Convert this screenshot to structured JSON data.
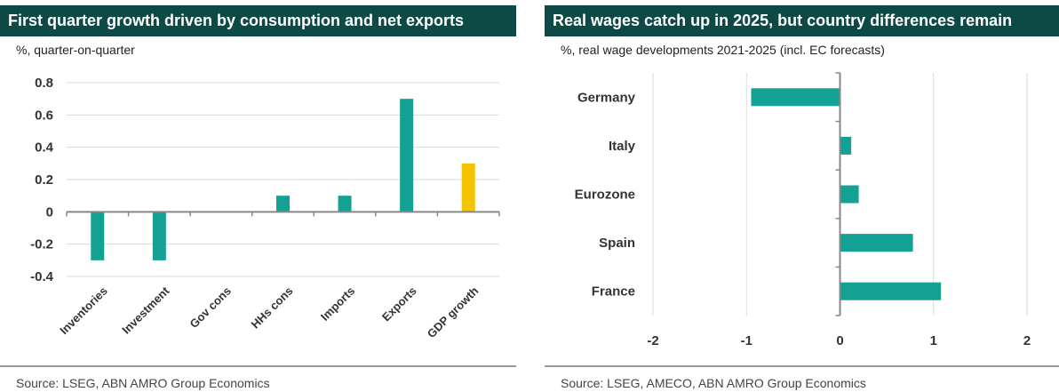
{
  "colors": {
    "header_bg": "#0d4a46",
    "bar": "#12a192",
    "highlight": "#f5c400",
    "grid": "#d9d9d9",
    "axis": "#888888"
  },
  "chart_data": [
    {
      "type": "bar",
      "title": "First quarter growth driven by consumption and net exports",
      "subtitle": "%, quarter-on-quarter",
      "source": "Source: LSEG, ABN AMRO Group Economics",
      "categories": [
        "Inventories",
        "Investment",
        "Gov cons",
        "HHs cons",
        "Imports",
        "Exports",
        "GDP growth"
      ],
      "values": [
        -0.3,
        -0.3,
        0,
        0.1,
        0.1,
        0.7,
        0.3
      ],
      "highlight": [
        false,
        false,
        false,
        false,
        false,
        false,
        true
      ],
      "ylim": [
        -0.4,
        0.8
      ],
      "yticks": [
        -0.4,
        -0.2,
        0,
        0.2,
        0.4,
        0.6,
        0.8
      ],
      "ytick_labels": [
        "-0.4",
        "-0.2",
        "0",
        "0.2",
        "0.4",
        "0.6",
        "0.8"
      ],
      "xlabel": "",
      "ylabel": "",
      "grid": true
    },
    {
      "type": "bar",
      "orientation": "horizontal",
      "title": "Real wages catch up in 2025, but country differences remain",
      "subtitle": "%, real wage developments 2021-2025 (incl. EC forecasts)",
      "source": "Source: LSEG, AMECO, ABN AMRO Group Economics",
      "categories": [
        "Germany",
        "Italy",
        "Eurozone",
        "Spain",
        "France"
      ],
      "values": [
        -0.95,
        0.12,
        0.2,
        0.78,
        1.08
      ],
      "xlim": [
        -2,
        2
      ],
      "xticks": [
        -2,
        -1,
        0,
        1,
        2
      ],
      "xtick_labels": [
        "-2",
        "-1",
        "0",
        "1",
        "2"
      ],
      "xlabel": "",
      "ylabel": "",
      "grid": true
    }
  ]
}
